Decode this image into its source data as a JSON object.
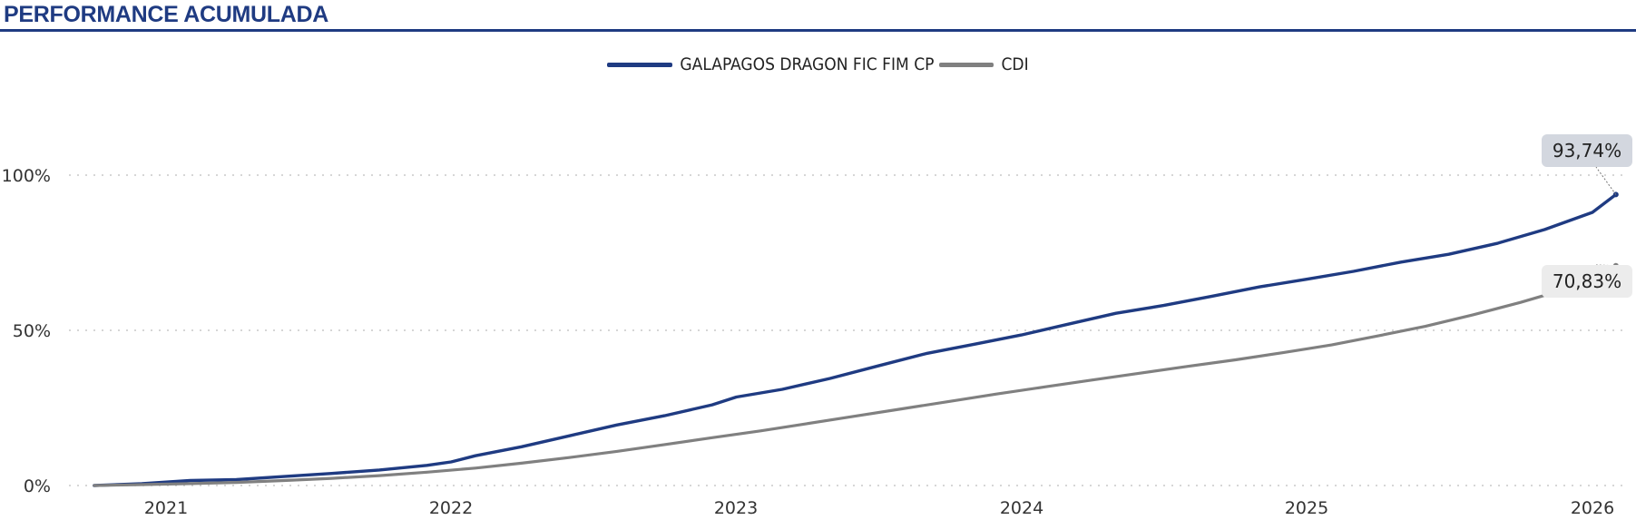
{
  "header": {
    "title": "PERFORMANCE ACUMULADA"
  },
  "colors": {
    "fund": "#1f3b82",
    "cdi": "#808080",
    "title": "#1f3b82",
    "grid": "#c8c8c8",
    "fund_label_bg": "#d3d7df",
    "cdi_label_bg": "#ececec"
  },
  "chart_data": {
    "type": "line",
    "title": "PERFORMANCE ACUMULADA",
    "xlabel": "",
    "ylabel": "",
    "x_tick_labels": [
      "2021",
      "2022",
      "2023",
      "2024",
      "2025",
      "2026"
    ],
    "y_tick_labels": [
      "0%",
      "50%",
      "100%"
    ],
    "ylim": [
      0,
      100
    ],
    "xlim": [
      "2020-10-01",
      "2026-01-31"
    ],
    "grid": "horizontal dotted",
    "legend_position": "top-center",
    "series": [
      {
        "name": "GALAPAGOS DRAGON FIC FIM CP",
        "x": [
          "2020-10-01",
          "2020-12-01",
          "2021-02-01",
          "2021-04-01",
          "2021-06-01",
          "2021-08-01",
          "2021-10-01",
          "2021-12-01",
          "2022-01-01",
          "2022-02-01",
          "2022-04-01",
          "2022-06-01",
          "2022-08-01",
          "2022-10-01",
          "2022-12-01",
          "2023-01-01",
          "2023-03-01",
          "2023-05-01",
          "2023-07-01",
          "2023-09-01",
          "2023-11-01",
          "2024-01-01",
          "2024-03-01",
          "2024-05-01",
          "2024-07-01",
          "2024-09-01",
          "2024-11-01",
          "2025-01-01",
          "2025-03-01",
          "2025-05-01",
          "2025-07-01",
          "2025-09-01",
          "2025-11-01",
          "2026-01-01",
          "2026-01-31"
        ],
        "values": [
          0,
          0.6,
          1.6,
          1.9,
          2.9,
          3.9,
          5.0,
          6.5,
          7.6,
          9.6,
          12.5,
          16.0,
          19.5,
          22.5,
          26.0,
          28.5,
          31.0,
          34.5,
          38.5,
          42.5,
          45.5,
          48.5,
          52.0,
          55.5,
          58.0,
          61.0,
          64.0,
          66.5,
          69.0,
          72.0,
          74.5,
          78.0,
          82.5,
          88.0,
          93.74
        ],
        "end_label": "93,74%"
      },
      {
        "name": "CDI",
        "x": [
          "2020-10-01",
          "2020-12-01",
          "2021-02-01",
          "2021-04-01",
          "2021-06-01",
          "2021-08-01",
          "2021-10-01",
          "2021-12-01",
          "2022-02-01",
          "2022-04-01",
          "2022-06-01",
          "2022-08-01",
          "2022-10-01",
          "2022-12-01",
          "2023-02-01",
          "2023-04-01",
          "2023-06-01",
          "2023-08-01",
          "2023-10-01",
          "2023-12-01",
          "2024-02-01",
          "2024-04-01",
          "2024-06-01",
          "2024-08-01",
          "2024-10-01",
          "2024-12-01",
          "2025-02-01",
          "2025-04-01",
          "2025-06-01",
          "2025-08-01",
          "2025-10-01",
          "2025-12-01",
          "2026-01-31"
        ],
        "values": [
          0,
          0.3,
          0.6,
          1.0,
          1.6,
          2.3,
          3.2,
          4.3,
          5.6,
          7.2,
          9.0,
          11.0,
          13.2,
          15.4,
          17.6,
          19.9,
          22.3,
          24.7,
          27.1,
          29.5,
          31.8,
          34.0,
          36.2,
          38.4,
          40.5,
          42.8,
          45.3,
          48.2,
          51.3,
          55.0,
          59.0,
          63.5,
          70.83
        ],
        "end_label": "70,83%"
      }
    ]
  }
}
